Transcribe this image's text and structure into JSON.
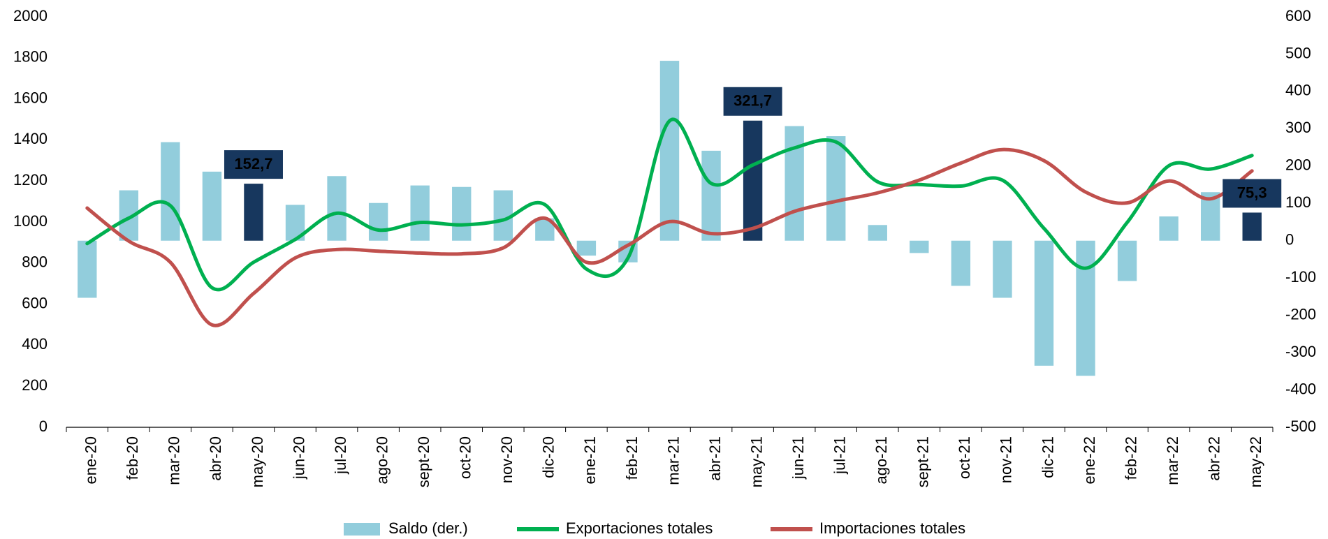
{
  "chart_data": {
    "type": "bar_line_combo",
    "categories": [
      "ene-20",
      "feb-20",
      "mar-20",
      "abr-20",
      "may-20",
      "jun-20",
      "jul-20",
      "ago-20",
      "sept-20",
      "oct-20",
      "nov-20",
      "dic-20",
      "ene-21",
      "feb-21",
      "mar-21",
      "abr-21",
      "may-21",
      "jun-21",
      "jul-21",
      "ago-21",
      "sept-21",
      "oct-21",
      "nov-21",
      "dic-21",
      "ene-22",
      "feb-22",
      "mar-22",
      "abr-22",
      "may-22"
    ],
    "series": [
      {
        "name": "Saldo (der.)",
        "type": "bar",
        "axis": "y2",
        "color": "#92cddc",
        "highlight_color": "#17375e",
        "values": [
          -153,
          135,
          264,
          185,
          152.7,
          96,
          173,
          101,
          148,
          144,
          135,
          60,
          -40,
          -58,
          482,
          241,
          321.7,
          307,
          280,
          42,
          -33,
          -121,
          -153,
          -335,
          -362,
          -108,
          65,
          130,
          75.3
        ],
        "value_labels": [
          null,
          null,
          null,
          null,
          "152,7",
          null,
          null,
          null,
          null,
          null,
          null,
          null,
          null,
          null,
          null,
          null,
          "321,7",
          null,
          null,
          null,
          null,
          null,
          null,
          null,
          null,
          null,
          null,
          null,
          "75,3"
        ]
      },
      {
        "name": "Exportaciones totales",
        "type": "line",
        "color": "#00b050",
        "values": [
          895,
          1019,
          1080,
          680,
          804,
          915,
          1043,
          961,
          998,
          986,
          1010,
          1085,
          771,
          825,
          1493,
          1188,
          1278,
          1361,
          1390,
          1196,
          1183,
          1175,
          1204,
          969,
          775,
          998,
          1274,
          1258,
          1324
        ]
      },
      {
        "name": "Importaciones totales",
        "type": "line",
        "color": "#c0504d",
        "values": [
          1068,
          907,
          804,
          499,
          652,
          825,
          866,
          858,
          849,
          845,
          874,
          1019,
          804,
          887,
          1002,
          944,
          969,
          1052,
          1101,
          1142,
          1204,
          1287,
          1353,
          1299,
          1146,
          1093,
          1200,
          1113,
          1249
        ]
      }
    ],
    "ylim": [
      0,
      2000
    ],
    "yticks": [
      0,
      200,
      400,
      600,
      800,
      1000,
      1200,
      1400,
      1600,
      1800,
      2000
    ],
    "y2lim": [
      -500,
      600
    ],
    "y2ticks": [
      -500,
      -400,
      -300,
      -200,
      -100,
      0,
      100,
      200,
      300,
      400,
      500,
      600
    ],
    "legend": "bottom"
  }
}
